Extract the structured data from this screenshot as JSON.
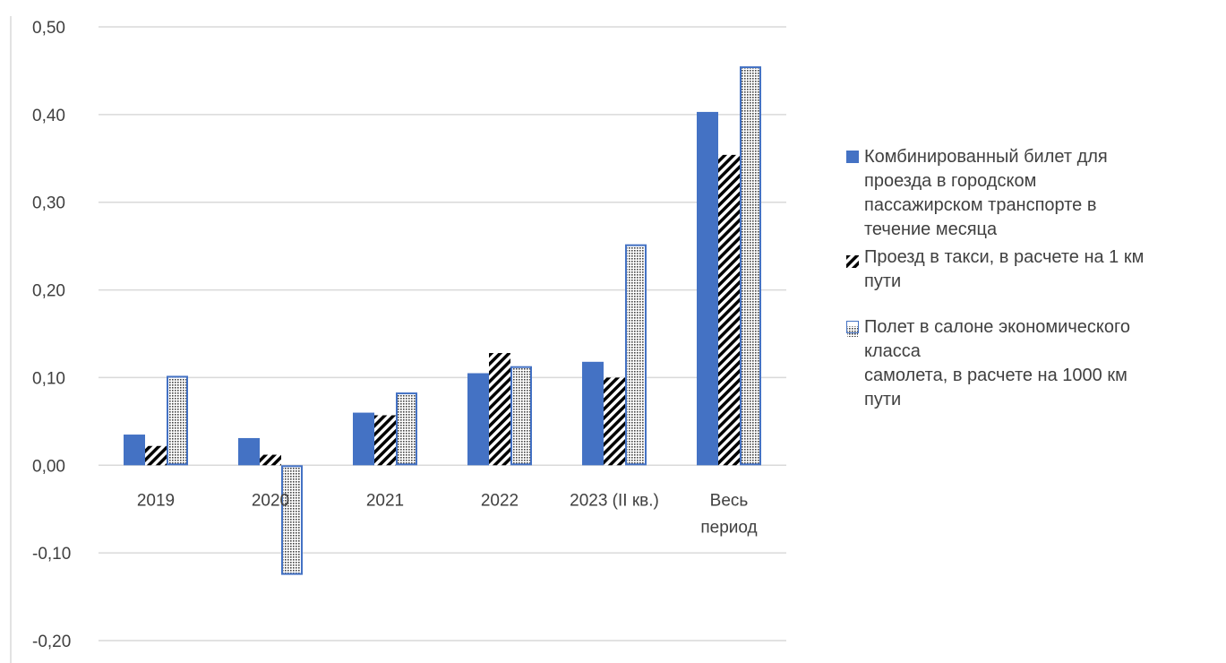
{
  "colors": {
    "series1": "#4472c4",
    "series2_stripe": "#000000",
    "series3_outline": "#4472c4",
    "series3_dots": "#444444",
    "grid": "#d9d9d9",
    "text": "#404040"
  },
  "chart_data": {
    "type": "bar",
    "title": "",
    "xlabel": "",
    "ylabel": "",
    "categories": [
      [
        "2019"
      ],
      [
        "2020"
      ],
      [
        "2021"
      ],
      [
        "2022"
      ],
      [
        "2023 (II кв.)"
      ],
      [
        "Весь",
        "период"
      ]
    ],
    "ylim": [
      -0.2,
      0.5
    ],
    "yticks": [
      0.5,
      0.4,
      0.3,
      0.2,
      0.1,
      0.0,
      -0.1,
      -0.2
    ],
    "ytick_labels": [
      "0,50",
      "0,40",
      "0,30",
      "0,20",
      "0,10",
      "0,00",
      "-0,10",
      "-0,20"
    ],
    "grid": true,
    "legend_position": "right",
    "series": [
      {
        "name": "Комбинированный билет для\nпроезда в городском\nпассажирском транспорте в\nтечение месяца",
        "pattern": "solid",
        "values": [
          0.035,
          0.031,
          0.06,
          0.105,
          0.118,
          0.403
        ]
      },
      {
        "name": "Проезд в такси, в расчете на 1 км\nпути",
        "pattern": "diagonal-stripes",
        "values": [
          0.022,
          0.012,
          0.057,
          0.128,
          0.1,
          0.354
        ]
      },
      {
        "name": "Полет в салоне экономического\nкласса\nсамолета, в расчете на 1000 км\nпути",
        "pattern": "dots",
        "values": [
          0.102,
          -0.125,
          0.083,
          0.113,
          0.252,
          0.455
        ]
      }
    ]
  }
}
